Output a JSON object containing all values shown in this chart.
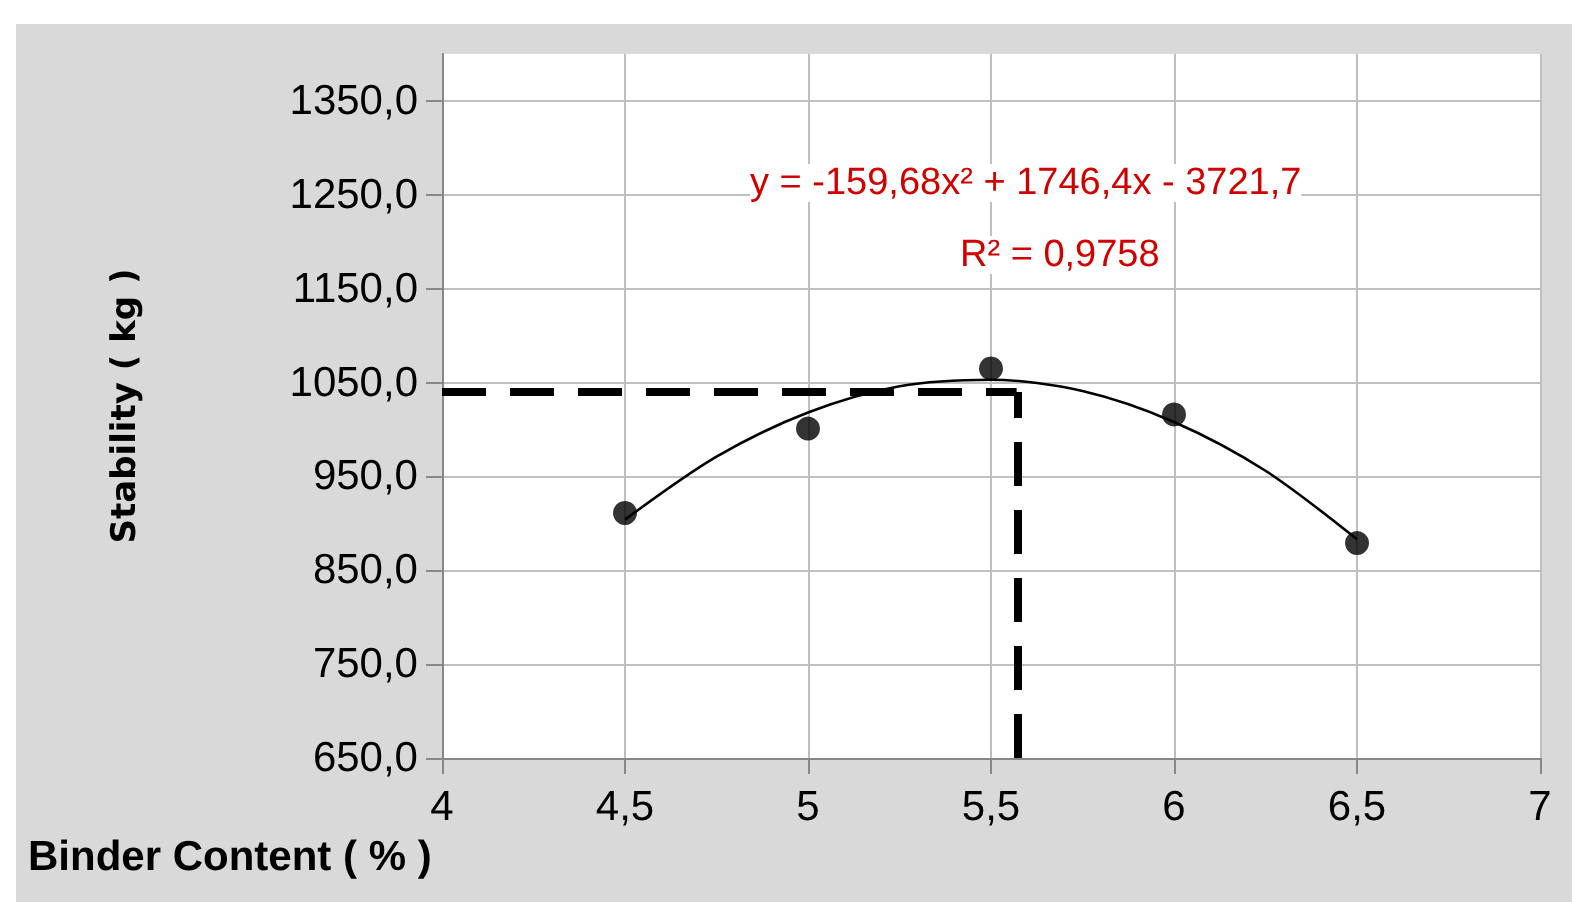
{
  "chart_data": {
    "type": "scatter",
    "xlabel": "Binder Content ( % )",
    "ylabel": "Stability ( kg )",
    "annotations": [
      "y = -159,68x² + 1746,4x - 3721,7",
      "R² = 0,9758"
    ],
    "series": [
      {
        "color": "#000000",
        "x": [
          4.5,
          5,
          5.5,
          6,
          6.5
        ],
        "values": [
          911,
          1001,
          1065,
          1016,
          879
        ],
        "marker": "circle"
      },
      {
        "type": "line",
        "color": "#000000",
        "x": [
          4.5,
          4.75,
          5,
          5.25,
          5.5,
          5.75,
          6,
          6.25,
          6.5
        ],
        "values": [
          904,
          971,
          1018,
          1046,
          1053,
          1041,
          1008,
          956,
          883
        ],
        "marker": "none",
        "line_style": "solid"
      }
    ],
    "xlim": [
      4,
      7
    ],
    "ylim": [
      650,
      1400
    ],
    "xticks": [
      4,
      {
        "value": 4.5,
        "label": "4,5"
      },
      5,
      {
        "value": 5.5,
        "label": "5,5"
      },
      6,
      {
        "value": 6.5,
        "label": "6,5"
      },
      7
    ],
    "yticks": [
      {
        "value": 650,
        "label": "650,0"
      },
      {
        "value": 750,
        "label": "750,0"
      },
      {
        "value": 850,
        "label": "850,0"
      },
      {
        "value": 950,
        "label": "950,0"
      },
      {
        "value": 1050,
        "label": "1050,0"
      },
      {
        "value": 1150,
        "label": "1150,0"
      },
      {
        "value": 1250,
        "label": "1250,0"
      },
      {
        "value": 1350,
        "label": "1350,0"
      }
    ],
    "ref_lines": [
      {
        "axis": "y",
        "value": 1040,
        "color": "#000000",
        "line_style": "dashed"
      },
      {
        "axis": "x",
        "value": 5.57,
        "color": "#000000",
        "line_style": "dashed"
      }
    ],
    "grid": true
  }
}
